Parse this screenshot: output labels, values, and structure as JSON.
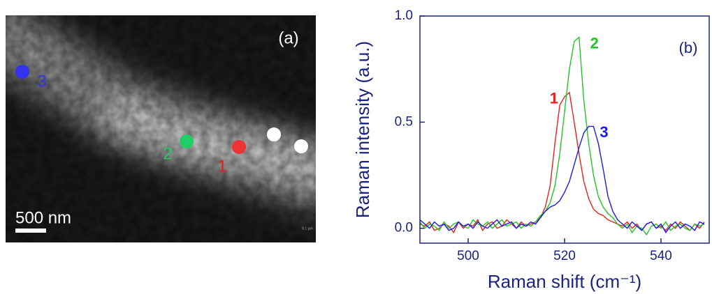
{
  "image_panel": {
    "panel_label": "(a)",
    "scale_bar": "500 nm",
    "corner_mark": "0.1 µm",
    "points": [
      {
        "label": "1"
      },
      {
        "label": "2"
      },
      {
        "label": "3"
      }
    ]
  },
  "chart_data": {
    "type": "line",
    "panel_label": "(b)",
    "x_label": "Raman shift (cm⁻¹)",
    "y_label": "Raman intensity (a.u.)",
    "xlim": [
      490,
      550
    ],
    "ylim": [
      -0.07,
      1.0
    ],
    "xticks": [
      500,
      520,
      540
    ],
    "yticks": [
      {
        "value": 0,
        "label": "0.0"
      },
      {
        "value": 0.5,
        "label": "0.5"
      },
      {
        "value": 1.0,
        "label": "1.0"
      }
    ],
    "x": [
      490,
      491,
      492,
      493,
      494,
      495,
      496,
      497,
      498,
      499,
      500,
      501,
      502,
      503,
      504,
      505,
      506,
      507,
      508,
      509,
      510,
      511,
      512,
      513,
      514,
      515,
      516,
      517,
      518,
      519,
      520,
      521,
      522,
      523,
      524,
      525,
      526,
      527,
      528,
      529,
      530,
      531,
      532,
      533,
      534,
      535,
      536,
      537,
      538,
      539,
      540,
      541,
      542,
      543,
      544,
      545,
      546,
      547,
      548,
      549
    ],
    "series": [
      {
        "name": "1",
        "color": "#e8201c",
        "values": [
          0.02,
          0.01,
          0.03,
          -0.01,
          0.0,
          0.02,
          0.01,
          -0.02,
          0.03,
          0.0,
          0.02,
          0.01,
          0.04,
          -0.01,
          0.02,
          0.03,
          0.0,
          0.01,
          0.04,
          0.02,
          0.0,
          0.03,
          0.01,
          0.02,
          0.03,
          0.05,
          0.1,
          0.2,
          0.4,
          0.58,
          0.62,
          0.64,
          0.5,
          0.35,
          0.22,
          0.14,
          0.09,
          0.07,
          0.06,
          0.04,
          0.03,
          0.02,
          0.01,
          0.03,
          0.0,
          0.02,
          -0.01,
          0.02,
          0.03,
          0.0,
          0.01,
          -0.01,
          0.02,
          0.0,
          0.03,
          0.01,
          -0.01,
          0.02,
          0.0,
          0.03
        ]
      },
      {
        "name": "2",
        "color": "#22c522",
        "values": [
          0.03,
          0.0,
          0.02,
          0.01,
          -0.01,
          0.03,
          0.0,
          0.02,
          0.03,
          0.01,
          0.0,
          0.04,
          0.02,
          0.01,
          0.03,
          0.0,
          0.02,
          0.04,
          0.01,
          0.02,
          0.03,
          0.0,
          0.02,
          0.01,
          0.03,
          0.06,
          0.08,
          0.12,
          0.2,
          0.35,
          0.55,
          0.75,
          0.88,
          0.9,
          0.6,
          0.4,
          0.25,
          0.15,
          0.1,
          0.07,
          0.05,
          0.02,
          0.0,
          0.02,
          -0.02,
          0.01,
          0.0,
          -0.03,
          0.01,
          0.02,
          0.0,
          0.03,
          -0.01,
          0.01,
          0.02,
          0.0,
          -0.01,
          0.02,
          0.01,
          0.02
        ]
      },
      {
        "name": "3",
        "color": "#1a1aee",
        "values": [
          0.04,
          0.02,
          0.0,
          0.03,
          0.01,
          0.02,
          -0.01,
          0.0,
          0.03,
          0.01,
          0.02,
          0.0,
          0.03,
          0.01,
          0.0,
          0.02,
          0.04,
          0.01,
          0.02,
          0.03,
          0.0,
          0.02,
          0.01,
          0.03,
          0.02,
          0.05,
          0.08,
          0.1,
          0.11,
          0.13,
          0.17,
          0.22,
          0.3,
          0.38,
          0.45,
          0.48,
          0.48,
          0.4,
          0.28,
          0.15,
          0.08,
          0.04,
          0.02,
          0.0,
          0.03,
          0.01,
          -0.01,
          0.02,
          0.03,
          0.0,
          0.02,
          -0.02,
          0.01,
          0.03,
          0.0,
          0.02,
          0.01,
          -0.01,
          0.03,
          0.02
        ]
      }
    ]
  }
}
